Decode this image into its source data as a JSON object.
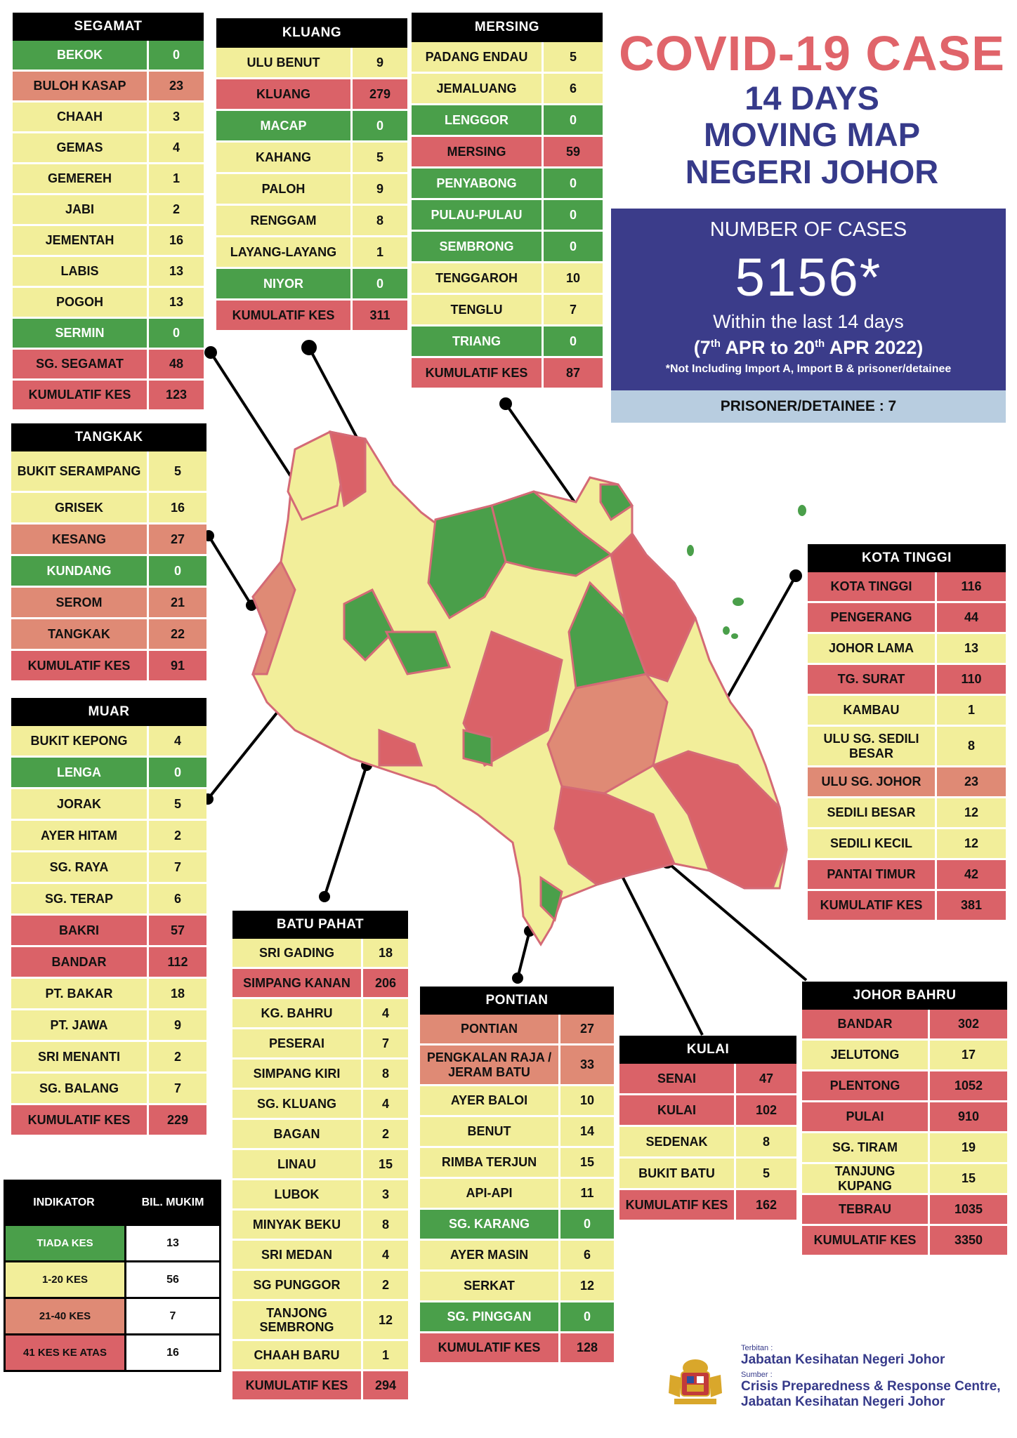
{
  "header": {
    "title": "COVID-19 CASE",
    "subtitle_lines": [
      "14 DAYS",
      "MOVING MAP",
      "NEGERI JOHOR"
    ]
  },
  "cases_box": {
    "label": "NUMBER OF CASES",
    "number": "5156*",
    "within": "Within the last 14 days",
    "range_start_day": "7",
    "range_start_sup": "th",
    "range_start_month": "APR to",
    "range_end_day": "20",
    "range_end_sup": "th",
    "range_end_rest": "APR 2022)",
    "range_open": "(",
    "note": "*Not Including Import A, Import B & prisoner/detainee",
    "prisoner": "PRISONER/DETAINEE : 7"
  },
  "colors": {
    "green": "#4a9f4a",
    "yellow": "#f2ee9a",
    "orange": "#df8a75",
    "red": "#da6268",
    "title_red": "#e0646a",
    "navy": "#3b3c8a"
  },
  "districts": {
    "segamat": {
      "name": "SEGAMAT",
      "rows": [
        {
          "n": "BEKOK",
          "v": "0",
          "c": "g"
        },
        {
          "n": "BULOH KASAP",
          "v": "23",
          "c": "o"
        },
        {
          "n": "CHAAH",
          "v": "3",
          "c": "y"
        },
        {
          "n": "GEMAS",
          "v": "4",
          "c": "y"
        },
        {
          "n": "GEMEREH",
          "v": "1",
          "c": "y"
        },
        {
          "n": "JABI",
          "v": "2",
          "c": "y"
        },
        {
          "n": "JEMENTAH",
          "v": "16",
          "c": "y"
        },
        {
          "n": "LABIS",
          "v": "13",
          "c": "y"
        },
        {
          "n": "POGOH",
          "v": "13",
          "c": "y"
        },
        {
          "n": "SERMIN",
          "v": "0",
          "c": "g"
        },
        {
          "n": "SG. SEGAMAT",
          "v": "48",
          "c": "r"
        },
        {
          "n": "KUMULATIF KES",
          "v": "123",
          "c": "r"
        }
      ]
    },
    "kluang": {
      "name": "KLUANG",
      "rows": [
        {
          "n": "ULU BENUT",
          "v": "9",
          "c": "y"
        },
        {
          "n": "KLUANG",
          "v": "279",
          "c": "r"
        },
        {
          "n": "MACAP",
          "v": "0",
          "c": "g"
        },
        {
          "n": "KAHANG",
          "v": "5",
          "c": "y"
        },
        {
          "n": "PALOH",
          "v": "9",
          "c": "y"
        },
        {
          "n": "RENGGAM",
          "v": "8",
          "c": "y"
        },
        {
          "n": "LAYANG-LAYANG",
          "v": "1",
          "c": "y"
        },
        {
          "n": "NIYOR",
          "v": "0",
          "c": "g"
        },
        {
          "n": "KUMULATIF KES",
          "v": "311",
          "c": "r"
        }
      ]
    },
    "mersing": {
      "name": "MERSING",
      "rows": [
        {
          "n": "PADANG ENDAU",
          "v": "5",
          "c": "y"
        },
        {
          "n": "JEMALUANG",
          "v": "6",
          "c": "y"
        },
        {
          "n": "LENGGOR",
          "v": "0",
          "c": "g"
        },
        {
          "n": "MERSING",
          "v": "59",
          "c": "r"
        },
        {
          "n": "PENYABONG",
          "v": "0",
          "c": "g"
        },
        {
          "n": "PULAU-PULAU",
          "v": "0",
          "c": "g"
        },
        {
          "n": "SEMBRONG",
          "v": "0",
          "c": "g"
        },
        {
          "n": "TENGGAROH",
          "v": "10",
          "c": "y"
        },
        {
          "n": "TENGLU",
          "v": "7",
          "c": "y"
        },
        {
          "n": "TRIANG",
          "v": "0",
          "c": "g"
        },
        {
          "n": "KUMULATIF KES",
          "v": "87",
          "c": "r"
        }
      ]
    },
    "tangkak": {
      "name": "TANGKAK",
      "rows": [
        {
          "n": "BUKIT SERAMPANG",
          "v": "5",
          "c": "y"
        },
        {
          "n": "GRISEK",
          "v": "16",
          "c": "y"
        },
        {
          "n": "KESANG",
          "v": "27",
          "c": "o"
        },
        {
          "n": "KUNDANG",
          "v": "0",
          "c": "g"
        },
        {
          "n": "SEROM",
          "v": "21",
          "c": "o"
        },
        {
          "n": "TANGKAK",
          "v": "22",
          "c": "o"
        },
        {
          "n": "KUMULATIF KES",
          "v": "91",
          "c": "r"
        }
      ]
    },
    "muar": {
      "name": "MUAR",
      "rows": [
        {
          "n": "BUKIT KEPONG",
          "v": "4",
          "c": "y"
        },
        {
          "n": "LENGA",
          "v": "0",
          "c": "g"
        },
        {
          "n": "JORAK",
          "v": "5",
          "c": "y"
        },
        {
          "n": "AYER HITAM",
          "v": "2",
          "c": "y"
        },
        {
          "n": "SG. RAYA",
          "v": "7",
          "c": "y"
        },
        {
          "n": "SG. TERAP",
          "v": "6",
          "c": "y"
        },
        {
          "n": "BAKRI",
          "v": "57",
          "c": "r"
        },
        {
          "n": "BANDAR",
          "v": "112",
          "c": "r"
        },
        {
          "n": "PT. BAKAR",
          "v": "18",
          "c": "y"
        },
        {
          "n": "PT. JAWA",
          "v": "9",
          "c": "y"
        },
        {
          "n": "SRI MENANTI",
          "v": "2",
          "c": "y"
        },
        {
          "n": "SG. BALANG",
          "v": "7",
          "c": "y"
        },
        {
          "n": "KUMULATIF KES",
          "v": "229",
          "c": "r"
        }
      ]
    },
    "batu_pahat": {
      "name": "BATU PAHAT",
      "rows": [
        {
          "n": "SRI GADING",
          "v": "18",
          "c": "y"
        },
        {
          "n": "SIMPANG KANAN",
          "v": "206",
          "c": "r"
        },
        {
          "n": "KG. BAHRU",
          "v": "4",
          "c": "y"
        },
        {
          "n": "PESERAI",
          "v": "7",
          "c": "y"
        },
        {
          "n": "SIMPANG KIRI",
          "v": "8",
          "c": "y"
        },
        {
          "n": "SG. KLUANG",
          "v": "4",
          "c": "y"
        },
        {
          "n": "BAGAN",
          "v": "2",
          "c": "y"
        },
        {
          "n": "LINAU",
          "v": "15",
          "c": "y"
        },
        {
          "n": "LUBOK",
          "v": "3",
          "c": "y"
        },
        {
          "n": "MINYAK BEKU",
          "v": "8",
          "c": "y"
        },
        {
          "n": "SRI MEDAN",
          "v": "4",
          "c": "y"
        },
        {
          "n": "SG PUNGGOR",
          "v": "2",
          "c": "y"
        },
        {
          "n": "TANJONG SEMBRONG",
          "v": "12",
          "c": "y"
        },
        {
          "n": "CHAAH BARU",
          "v": "1",
          "c": "y"
        },
        {
          "n": "KUMULATIF KES",
          "v": "294",
          "c": "r"
        }
      ]
    },
    "pontian": {
      "name": "PONTIAN",
      "rows": [
        {
          "n": "PONTIAN",
          "v": "27",
          "c": "o"
        },
        {
          "n": "PENGKALAN RAJA / JERAM BATU",
          "v": "33",
          "c": "o"
        },
        {
          "n": "AYER BALOI",
          "v": "10",
          "c": "y"
        },
        {
          "n": "BENUT",
          "v": "14",
          "c": "y"
        },
        {
          "n": "RIMBA TERJUN",
          "v": "15",
          "c": "y"
        },
        {
          "n": "API-API",
          "v": "11",
          "c": "y"
        },
        {
          "n": "SG. KARANG",
          "v": "0",
          "c": "g"
        },
        {
          "n": "AYER MASIN",
          "v": "6",
          "c": "y"
        },
        {
          "n": "SERKAT",
          "v": "12",
          "c": "y"
        },
        {
          "n": "SG. PINGGAN",
          "v": "0",
          "c": "g"
        },
        {
          "n": "KUMULATIF KES",
          "v": "128",
          "c": "r"
        }
      ]
    },
    "kulai": {
      "name": "KULAI",
      "rows": [
        {
          "n": "SENAI",
          "v": "47",
          "c": "r"
        },
        {
          "n": "KULAI",
          "v": "102",
          "c": "r"
        },
        {
          "n": "SEDENAK",
          "v": "8",
          "c": "y"
        },
        {
          "n": "BUKIT BATU",
          "v": "5",
          "c": "y"
        },
        {
          "n": "KUMULATIF KES",
          "v": "162",
          "c": "r"
        }
      ]
    },
    "kota_tinggi": {
      "name": "KOTA TINGGI",
      "rows": [
        {
          "n": "KOTA TINGGI",
          "v": "116",
          "c": "r"
        },
        {
          "n": "PENGERANG",
          "v": "44",
          "c": "r"
        },
        {
          "n": "JOHOR LAMA",
          "v": "13",
          "c": "y"
        },
        {
          "n": "TG. SURAT",
          "v": "110",
          "c": "r"
        },
        {
          "n": "KAMBAU",
          "v": "1",
          "c": "y"
        },
        {
          "n": "ULU SG. SEDILI BESAR",
          "v": "8",
          "c": "y"
        },
        {
          "n": "ULU  SG. JOHOR",
          "v": "23",
          "c": "o"
        },
        {
          "n": "SEDILI BESAR",
          "v": "12",
          "c": "y"
        },
        {
          "n": "SEDILI KECIL",
          "v": "12",
          "c": "y"
        },
        {
          "n": "PANTAI TIMUR",
          "v": "42",
          "c": "r"
        },
        {
          "n": "KUMULATIF KES",
          "v": "381",
          "c": "r"
        }
      ]
    },
    "johor_bahru": {
      "name": "JOHOR BAHRU",
      "rows": [
        {
          "n": "BANDAR",
          "v": "302",
          "c": "r"
        },
        {
          "n": "JELUTONG",
          "v": "17",
          "c": "y"
        },
        {
          "n": "PLENTONG",
          "v": "1052",
          "c": "r"
        },
        {
          "n": "PULAI",
          "v": "910",
          "c": "r"
        },
        {
          "n": "SG. TIRAM",
          "v": "19",
          "c": "y"
        },
        {
          "n": "TANJUNG KUPANG",
          "v": "15",
          "c": "y"
        },
        {
          "n": "TEBRAU",
          "v": "1035",
          "c": "r"
        },
        {
          "n": "KUMULATIF KES",
          "v": "3350",
          "c": "r"
        }
      ]
    }
  },
  "legend": {
    "col1": "INDIKATOR",
    "col2": "BIL. MUKIM",
    "rows": [
      {
        "label": "TIADA KES",
        "value": "13",
        "c": "g"
      },
      {
        "label": "1-20 KES",
        "value": "56",
        "c": "y"
      },
      {
        "label": "21-40 KES",
        "value": "7",
        "c": "o"
      },
      {
        "label": "41 KES KE ATAS",
        "value": "16",
        "c": "r"
      }
    ]
  },
  "footer": {
    "terbitan_label": "Terbitan :",
    "terbitan": "Jabatan Kesihatan Negeri Johor",
    "sumber_label": "Sumber :",
    "sumber_line1": "Crisis Preparedness & Response Centre,",
    "sumber_line2": "Jabatan Kesihatan Negeri Johor"
  }
}
